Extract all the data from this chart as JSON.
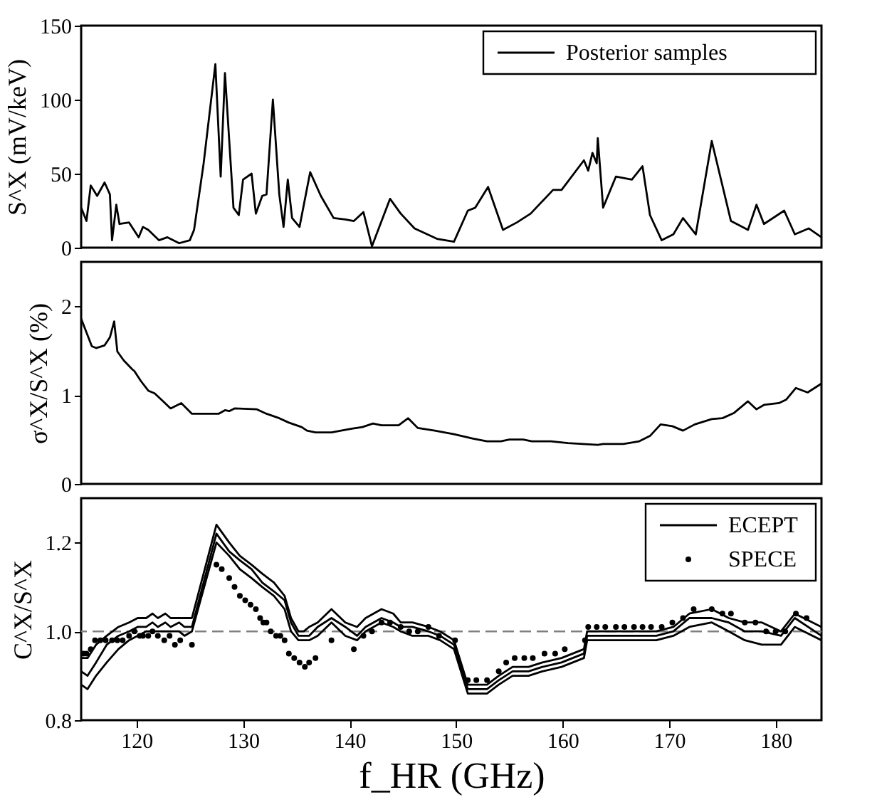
{
  "chart_data": [
    {
      "type": "line",
      "ylabel": "S^X (mV/keV)",
      "xlim": [
        114.8,
        184.3
      ],
      "ylim": [
        0,
        150
      ],
      "yticks": [
        0,
        50,
        100,
        150
      ],
      "tick_labels": "y",
      "legend": "top right",
      "grid": false,
      "series": [
        {
          "name": "Posterior samples",
          "color": "#000000",
          "x": [
            114.8,
            115.3,
            115.7,
            116.3,
            117.0,
            117.5,
            117.7,
            118.1,
            118.4,
            119.3,
            120.2,
            120.6,
            121.1,
            122.1,
            122.9,
            124.0,
            125.0,
            125.4,
            126.3,
            127.4,
            127.9,
            128.3,
            129.1,
            129.6,
            130.0,
            130.8,
            131.2,
            131.8,
            132.2,
            132.8,
            133.4,
            133.8,
            134.2,
            134.6,
            135.3,
            136.3,
            137.3,
            138.5,
            139.6,
            140.4,
            141.3,
            142.1,
            143.8,
            144.8,
            146.1,
            148.2,
            149.8,
            151.1,
            151.8,
            153.0,
            154.4,
            155.7,
            157.0,
            159.1,
            159.9,
            162.0,
            162.4,
            162.8,
            163.2,
            163.3,
            163.8,
            165.0,
            166.5,
            167.5,
            168.2,
            169.3,
            170.4,
            171.3,
            172.5,
            174.0,
            175.8,
            177.4,
            178.2,
            178.9,
            180.8,
            181.8,
            183.1,
            184.3
          ],
          "values": [
            27,
            18,
            42,
            35,
            44,
            36,
            5,
            29,
            16,
            17,
            7,
            14,
            12,
            5,
            7,
            3,
            5,
            12,
            57,
            124,
            48,
            118,
            27,
            22,
            46,
            50,
            23,
            35,
            36,
            100,
            36,
            14,
            46,
            20,
            14,
            51,
            35,
            20,
            19,
            18,
            24,
            1,
            33,
            23,
            13,
            6,
            4,
            25,
            27,
            41,
            12,
            17,
            23,
            39,
            39,
            59,
            52,
            64,
            57,
            74,
            27,
            48,
            46,
            55,
            22,
            5,
            9,
            20,
            9,
            72,
            18,
            12,
            29,
            16,
            25,
            9,
            13,
            7
          ]
        }
      ]
    },
    {
      "type": "line",
      "ylabel": "σ^X/S^X (%)",
      "xlim": [
        114.8,
        184.3
      ],
      "ylim": [
        0,
        2.5
      ],
      "yticks": [
        0,
        1,
        2
      ],
      "tick_labels": "y",
      "grid": false,
      "series": [
        {
          "color": "#000000",
          "x": [
            114.8,
            115.8,
            116.2,
            117.0,
            117.5,
            117.9,
            118.2,
            118.8,
            119.6,
            119.8,
            120.4,
            121.1,
            121.7,
            122.5,
            123.2,
            124.2,
            125.2,
            127.7,
            128.3,
            128.7,
            129.2,
            131.3,
            132.2,
            133.4,
            134.3,
            135.5,
            136.0,
            136.8,
            138.3,
            140.1,
            141.2,
            142.2,
            143.0,
            144.6,
            145.5,
            146.4,
            148.0,
            149.8,
            151.6,
            152.9,
            154.2,
            155.0,
            156.3,
            157.1,
            158.9,
            160.5,
            163.3,
            163.8,
            165.7,
            167.2,
            168.2,
            169.2,
            170.3,
            171.3,
            172.4,
            174.0,
            175.0,
            176.1,
            177.4,
            178.2,
            178.9,
            180.3,
            181.0,
            181.9,
            183.0,
            184.3
          ],
          "values": [
            1.86,
            1.55,
            1.53,
            1.56,
            1.65,
            1.83,
            1.49,
            1.39,
            1.29,
            1.27,
            1.16,
            1.05,
            1.02,
            0.93,
            0.85,
            0.91,
            0.79,
            0.79,
            0.83,
            0.82,
            0.85,
            0.84,
            0.79,
            0.74,
            0.69,
            0.64,
            0.6,
            0.58,
            0.58,
            0.62,
            0.64,
            0.68,
            0.66,
            0.66,
            0.74,
            0.63,
            0.6,
            0.56,
            0.51,
            0.48,
            0.48,
            0.5,
            0.5,
            0.48,
            0.48,
            0.46,
            0.44,
            0.45,
            0.45,
            0.48,
            0.54,
            0.67,
            0.65,
            0.6,
            0.67,
            0.73,
            0.74,
            0.8,
            0.93,
            0.84,
            0.89,
            0.91,
            0.95,
            1.08,
            1.03,
            1.13
          ]
        }
      ]
    },
    {
      "type": "line",
      "ylabel": "C^X/S^X",
      "xlabel": "f_HR (GHz)",
      "xlim": [
        114.8,
        184.3
      ],
      "xticks": [
        120,
        130,
        140,
        150,
        160,
        170,
        180
      ],
      "ylim": [
        0.8,
        1.3
      ],
      "yticks": [
        {
          "value": 0.8,
          "label": "0.8"
        },
        {
          "value": 1,
          "label": "1.0"
        },
        {
          "value": 1.2,
          "label": "1.2"
        }
      ],
      "legend": "top right",
      "grid": false,
      "ref_lines": [
        {
          "axis": "y",
          "value": 1,
          "color": "#808080",
          "line_style": "dashed"
        }
      ],
      "series": [
        {
          "name": "ECEPT",
          "color": "#000000",
          "x": [
            114.8,
            115.4,
            116.2,
            117.2,
            118.3,
            119.3,
            120.1,
            120.9,
            121.5,
            122.0,
            122.7,
            123.2,
            124.0,
            124.5,
            125.2,
            127.5,
            128.7,
            129.7,
            130.8,
            131.8,
            132.9,
            133.9,
            134.5,
            135.2,
            135.7,
            136.2,
            137.0,
            138.3,
            139.6,
            140.7,
            141.5,
            143.0,
            144.1,
            144.8,
            145.9,
            147.4,
            148.5,
            149.8,
            151.1,
            151.9,
            152.9,
            154.0,
            155.3,
            156.8,
            158.1,
            159.9,
            162.0,
            162.3,
            165.1,
            166.7,
            168.8,
            170.4,
            171.9,
            174.0,
            175.6,
            177.1,
            178.7,
            180.5,
            181.8,
            184.3
          ],
          "values": [
            0.91,
            0.9,
            0.93,
            0.97,
            0.99,
            1.0,
            1.01,
            1.01,
            1.02,
            1.01,
            1.02,
            1.01,
            1.02,
            1.01,
            1.01,
            1.22,
            1.18,
            1.16,
            1.14,
            1.11,
            1.09,
            1.07,
            1.02,
            0.99,
            0.99,
            0.99,
            1.01,
            1.03,
            1.01,
            0.99,
            1.01,
            1.03,
            1.02,
            1.01,
            1.01,
            1.0,
            0.99,
            0.97,
            0.87,
            0.87,
            0.87,
            0.89,
            0.91,
            0.91,
            0.92,
            0.93,
            0.95,
            0.99,
            0.99,
            0.99,
            0.99,
            1.0,
            1.03,
            1.03,
            1.02,
            1.0,
            1.0,
            0.99,
            1.03,
            0.99
          ]
        },
        {
          "color": "#000000",
          "x": [
            114.8,
            115.4,
            116.2,
            117.2,
            118.3,
            119.3,
            120.1,
            120.9,
            121.5,
            122.0,
            122.7,
            123.2,
            124.0,
            124.5,
            125.2,
            127.5,
            128.7,
            129.7,
            130.8,
            131.8,
            132.9,
            133.9,
            134.5,
            135.2,
            135.7,
            136.2,
            137.0,
            138.3,
            139.6,
            140.7,
            141.5,
            143.0,
            144.1,
            144.8,
            145.9,
            147.4,
            148.5,
            149.8,
            151.1,
            151.9,
            152.9,
            154.0,
            155.3,
            156.8,
            158.1,
            159.9,
            162.0,
            162.3,
            165.1,
            166.7,
            168.8,
            170.4,
            171.9,
            174.0,
            175.6,
            177.1,
            178.7,
            180.5,
            181.8,
            184.3
          ],
          "values": [
            0.94,
            0.94,
            0.97,
            0.99,
            1.01,
            1.02,
            1.03,
            1.03,
            1.04,
            1.03,
            1.04,
            1.03,
            1.03,
            1.03,
            1.03,
            1.24,
            1.2,
            1.17,
            1.15,
            1.13,
            1.11,
            1.08,
            1.03,
            1.0,
            1.0,
            1.01,
            1.02,
            1.05,
            1.02,
            1.01,
            1.03,
            1.05,
            1.04,
            1.02,
            1.02,
            1.01,
            1.0,
            0.98,
            0.88,
            0.88,
            0.88,
            0.9,
            0.92,
            0.92,
            0.93,
            0.94,
            0.96,
            1.0,
            1.0,
            1.0,
            1.0,
            1.01,
            1.04,
            1.05,
            1.03,
            1.02,
            1.02,
            1.0,
            1.04,
            1.01
          ]
        },
        {
          "color": "#000000",
          "x": [
            114.8,
            115.4,
            116.2,
            117.2,
            118.3,
            119.3,
            120.1,
            120.9,
            121.5,
            122.0,
            122.7,
            123.2,
            124.0,
            124.5,
            125.2,
            127.5,
            128.7,
            129.7,
            130.8,
            131.8,
            132.9,
            133.9,
            134.5,
            135.2,
            135.7,
            136.2,
            137.0,
            138.3,
            139.6,
            140.7,
            141.5,
            143.0,
            144.1,
            144.8,
            145.9,
            147.4,
            148.5,
            149.8,
            151.1,
            151.9,
            152.9,
            154.0,
            155.3,
            156.8,
            158.1,
            159.9,
            162.0,
            162.3,
            165.1,
            166.7,
            168.8,
            170.4,
            171.9,
            174.0,
            175.6,
            177.1,
            178.7,
            180.5,
            181.8,
            184.3
          ],
          "values": [
            0.88,
            0.87,
            0.9,
            0.93,
            0.96,
            0.98,
            0.99,
            1.0,
            1.0,
            1.0,
            1.0,
            1.0,
            1.0,
            0.99,
            1.0,
            1.2,
            1.17,
            1.14,
            1.12,
            1.1,
            1.08,
            1.05,
            1.0,
            0.98,
            0.98,
            0.98,
            0.99,
            1.02,
            0.99,
            0.98,
            1.0,
            1.02,
            1.01,
            1.0,
            0.99,
            0.99,
            0.98,
            0.96,
            0.86,
            0.86,
            0.86,
            0.88,
            0.9,
            0.9,
            0.91,
            0.92,
            0.94,
            0.98,
            0.98,
            0.98,
            0.98,
            0.99,
            1.01,
            1.02,
            1.0,
            0.98,
            0.97,
            0.97,
            1.01,
            0.98
          ]
        },
        {
          "name": "SPECE",
          "type": "scatter",
          "marker": "circle",
          "color": "#000000",
          "x": [
            115.0,
            115.3,
            115.7,
            116.1,
            116.6,
            117.1,
            117.7,
            118.2,
            118.7,
            119.3,
            119.8,
            120.3,
            120.6,
            121.1,
            121.5,
            122.0,
            122.6,
            123.1,
            123.6,
            124.1,
            125.2,
            127.5,
            128.0,
            128.7,
            129.2,
            129.7,
            130.2,
            130.7,
            131.2,
            131.6,
            131.9,
            132.2,
            132.6,
            133.1,
            133.5,
            133.9,
            134.3,
            134.8,
            135.3,
            135.8,
            136.2,
            136.8,
            138.3,
            140.4,
            141.3,
            142.1,
            143.0,
            143.8,
            144.8,
            145.6,
            146.4,
            147.4,
            148.4,
            149.9,
            151.1,
            151.9,
            152.9,
            154.0,
            154.7,
            155.5,
            156.4,
            157.2,
            158.3,
            159.3,
            160.2,
            162.1,
            162.4,
            163.2,
            164.0,
            165.0,
            165.8,
            166.7,
            167.5,
            168.3,
            169.3,
            170.3,
            171.3,
            172.3,
            174.0,
            175.0,
            175.8,
            177.1,
            178.1,
            179.1,
            180.0,
            180.9,
            181.9,
            182.9
          ],
          "values": [
            0.95,
            0.95,
            0.96,
            0.98,
            0.98,
            0.98,
            0.98,
            0.98,
            0.98,
            0.99,
            1.0,
            0.99,
            0.99,
            0.99,
            1.0,
            0.99,
            0.98,
            0.99,
            0.97,
            0.98,
            0.97,
            1.15,
            1.14,
            1.12,
            1.1,
            1.08,
            1.07,
            1.06,
            1.05,
            1.03,
            1.02,
            1.02,
            1.0,
            0.99,
            0.99,
            0.98,
            0.95,
            0.94,
            0.93,
            0.92,
            0.93,
            0.94,
            0.98,
            0.96,
            0.99,
            1.0,
            1.02,
            1.02,
            1.01,
            1.0,
            1.0,
            1.01,
            0.99,
            0.98,
            0.89,
            0.89,
            0.89,
            0.91,
            0.93,
            0.94,
            0.94,
            0.94,
            0.95,
            0.95,
            0.96,
            0.98,
            1.01,
            1.01,
            1.01,
            1.01,
            1.01,
            1.01,
            1.01,
            1.01,
            1.01,
            1.02,
            1.03,
            1.05,
            1.05,
            1.04,
            1.04,
            1.02,
            1.02,
            1.0,
            1.0,
            1.0,
            1.04,
            1.03
          ]
        }
      ]
    }
  ]
}
